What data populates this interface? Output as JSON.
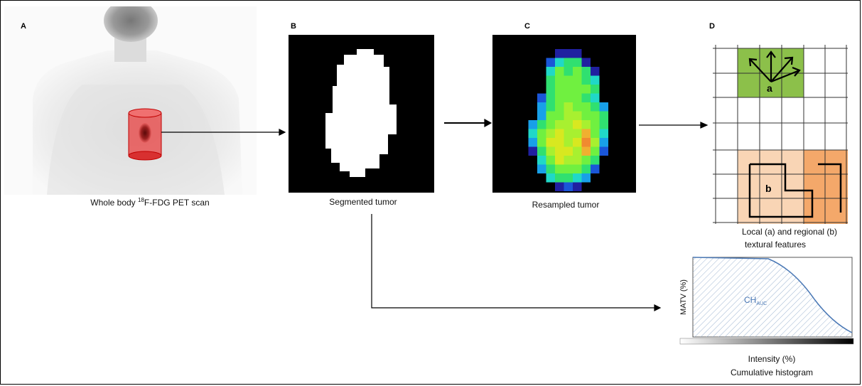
{
  "panels": {
    "a": {
      "letter": "A",
      "caption_prefix": "Whole body ",
      "caption_sup": "18",
      "caption_suffix": "F-FDG PET scan"
    },
    "b": {
      "letter": "B",
      "caption": "Segmented tumor"
    },
    "c": {
      "letter": "C",
      "caption": "Resampled tumor"
    },
    "d": {
      "letter": "D",
      "caption_line1": "Local (a) and regional (b)",
      "caption_line2": "textural features",
      "label_a": "a",
      "label_b": "b"
    },
    "histogram": {
      "y_label": "MATV (%)",
      "area_label_main": "CH",
      "area_label_sub": "AUC",
      "x_label": "Intensity (%)",
      "caption": "Cumulative histogram"
    }
  },
  "colors": {
    "tumor_cylinder": "#e83a3a",
    "local_region": "#8cc04a",
    "regional_light": "#f9d5b5",
    "regional_dark": "#f4a86a",
    "curve": "#4a78b5"
  }
}
